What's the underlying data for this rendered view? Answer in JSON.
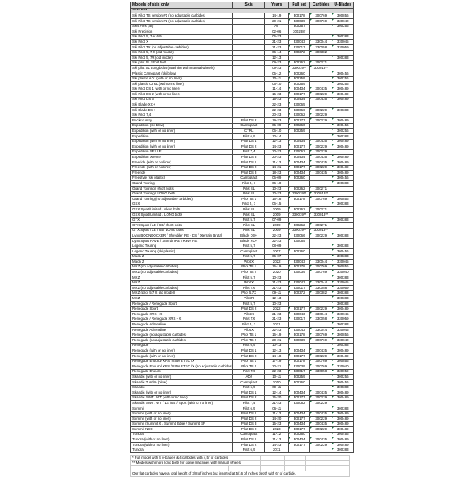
{
  "colors": {
    "header_bg": "#d9d9d9",
    "section_bg": "#d9d9d9",
    "grid_border": "#4a4a4a",
    "footnote_border": "#c9c9c9",
    "flag_green": "#1e7145"
  },
  "table": {
    "columns": [
      {
        "key": "model",
        "label": "Models of skis only"
      },
      {
        "key": "skis",
        "label": "Skis"
      },
      {
        "key": "years",
        "label": "Years"
      },
      {
        "key": "full-set",
        "label": "Full set"
      },
      {
        "key": "carbides",
        "label": "Carbides"
      },
      {
        "key": "u-blades",
        "label": "U-Blades"
      }
    ],
    "section_header": "Ski-Doo",
    "flag_columns": [
      3,
      4,
      5
    ],
    "flag_exceptions": [
      "300257",
      "300288*"
    ],
    "rows": [
      [
        "Ski Pilot TS version #1 (no adjustable carbides)",
        "",
        "14-19",
        "300178",
        "300769",
        "300856"
      ],
      [
        "Ski Pilot TS version #2 (no adjustable carbides)",
        "",
        "20-21",
        "330039",
        "300769",
        "330040"
      ],
      [
        "Skis Flex (all)",
        "",
        "All",
        "300257",
        "",
        "300256"
      ],
      [
        "Ski Precision",
        "",
        "02-06",
        "300288*",
        "",
        ""
      ],
      [
        "Ski Pilot 5, 7 et 6,9",
        "",
        "06-23",
        "",
        "",
        "300383"
      ],
      [
        "Ski Pilot X",
        "",
        "21-23",
        "330043",
        "330044",
        "330045"
      ],
      [
        "Ski Pilot TX (no adjustable carbides)",
        "",
        "21-23",
        "330017",
        "330058",
        "330059"
      ],
      [
        "Ski Pilot 5, 7 X (old model)",
        "",
        "06-14",
        "300372",
        "300382",
        ""
      ],
      [
        "Ski Pilot 5, 7R (old model)",
        "",
        "12-13",
        "",
        "",
        "300383"
      ],
      [
        "Ski pilot SL Short bolt",
        "",
        "09-23",
        "300262",
        "300271",
        ""
      ],
      [
        "Ski pilot SL Long bolts (machine with manual wheels)",
        "",
        "09-23",
        "330019**",
        "330018**",
        ""
      ],
      [
        "Plastic Camoplast (ski blow)",
        "",
        "05-12",
        "300260",
        "",
        "300456"
      ],
      [
        "Ski plastic ADJ (with or no liner)",
        "",
        "10-11",
        "300259",
        "",
        "300256"
      ],
      [
        "Ski plastic CTRL (with or no liner)",
        "",
        "06-10",
        "300259",
        "",
        "300256"
      ],
      [
        "Ski Pilot DS 1 (with or no liner)",
        "",
        "11-14",
        "300434",
        "300435",
        "300489"
      ],
      [
        "Ski Pilot DS 2 (with or no liner)",
        "",
        "15-23",
        "300177",
        "300229",
        "300489"
      ],
      [
        "Ski Pilot DS 3",
        "",
        "15-23",
        "300434",
        "300435",
        "300489"
      ],
      [
        "Ski Blade XC+",
        "",
        "22-23",
        "330065",
        "",
        ""
      ],
      [
        "Ski Blade DS+",
        "",
        "22-23",
        "330066",
        "300229",
        "300383"
      ],
      [
        "Ski Pilot 7,4",
        "",
        "20-23",
        "330062",
        "300229",
        ""
      ],
      [
        "Backcountry",
        "Pilot DS 2",
        "19-23",
        "300177",
        "300229",
        "300489"
      ],
      [
        "Expedition (ski blow)",
        "Camoplast",
        "05-09",
        "300260",
        "",
        "300456"
      ],
      [
        "Expedition (with or no liner)",
        "CTRL",
        "06-10",
        "300259",
        "",
        "300256"
      ],
      [
        "Expedition",
        "Pilot 6,9",
        "10-14",
        "",
        "",
        "300383"
      ],
      [
        "Expedition (with or no liner)",
        "Pilot DS 1",
        "12-13",
        "300434",
        "300435",
        "300489"
      ],
      [
        "Expedition (with or no liner)",
        "Pilot DS 2",
        "14-23",
        "300177",
        "300229",
        "300489"
      ],
      [
        "Expedition SE / LE",
        "Pilot 7,4",
        "20-23",
        "330062",
        "300229",
        ""
      ],
      [
        "Expedition Xtreme",
        "Pilot DS 3",
        "20-23",
        "300434",
        "300435",
        "300489"
      ],
      [
        "Freeride (with or no liner)",
        "Pilot DS 1",
        "11-13",
        "300434",
        "300435",
        "300489"
      ],
      [
        "Freeride (with or no liner)",
        "Pilot DS 2",
        "14-21",
        "300177",
        "300229",
        "300489"
      ],
      [
        "Freeride",
        "Pilot DS 3",
        "18-23",
        "300434",
        "300435",
        "300489"
      ],
      [
        "Freestyle (ski plastic)",
        "Camoplast",
        "06-09",
        "300260",
        "",
        "300456"
      ],
      [
        "Grand Touring",
        "Pilot 5, 7",
        "06-10",
        "",
        "",
        "300383"
      ],
      [
        "Grand Touring / short bolts",
        "Pilot SL",
        "10-23",
        "300262",
        "300271",
        ""
      ],
      [
        "Grand Touring / LONG bolts",
        "Pilot SL",
        "10-23",
        "330019**",
        "330018**",
        ""
      ],
      [
        "Grand Touring (no adjustable carbides)",
        "Pilot TS 1",
        "16-18",
        "300178",
        "300769",
        "300856"
      ],
      [
        "GSX",
        "Pilot 5, 7",
        "06-15",
        "",
        "",
        "300383"
      ],
      [
        "GSX Sport/Limited / short bolts",
        "Pilot SL",
        "2009",
        "300262",
        "300271",
        ""
      ],
      [
        "GSX Sport/Limited / LONG bolts",
        "Pilot SL",
        "2009",
        "330019**",
        "330018**",
        ""
      ],
      [
        "GTX",
        "Pilot 5,7",
        "07-09",
        "",
        "",
        "300383"
      ],
      [
        "GTX Sport / LE / SE/ short bolts",
        "Pilot SL",
        "2009",
        "300262",
        "300271",
        ""
      ],
      [
        "GTX Sport / LE / SE/ LONG bolts",
        "Pilot SL",
        "2009",
        "330019**",
        "330018**",
        ""
      ],
      [
        "Lynx BOONDOCKER / Shredder RE - DS / Xterrain Brutal",
        "Blade DS+",
        "22-23",
        "330066",
        "300229",
        "300383"
      ],
      [
        "Lynx Sport RAVE / Xterrain RE / Rave RE",
        "Blade XC+",
        "22-23",
        "330065",
        "",
        ""
      ],
      [
        "Legend Touring",
        "Pilot 5,7",
        "08-09",
        "",
        "",
        "300383"
      ],
      [
        "Legend Touring (ski plastic)",
        "Camoplast",
        "2007",
        "300260",
        "",
        "300456"
      ],
      [
        "Mach Z",
        "Pilot 5,7",
        "06-07",
        "",
        "",
        "300383"
      ],
      [
        "Mach Z",
        "Pilot X",
        "2022",
        "330043",
        "330044",
        "330045"
      ],
      [
        "MXZ (no adjustable carbides)",
        "Pilot TS 1",
        "16-19",
        "300178",
        "300769",
        "300856"
      ],
      [
        "MXZ (no adjustable carbides)",
        "Pilot TS 2",
        "2020",
        "330039",
        "300769",
        "330040"
      ],
      [
        "MXZ",
        "Pilot 5,7",
        "10-23",
        "",
        "",
        "300383"
      ],
      [
        "MXZ",
        "Pilot X",
        "21-23",
        "330043",
        "330044",
        "330045"
      ],
      [
        "MXZ (no adjustable carbides)",
        "Pilot TX",
        "21-23",
        "330017",
        "330058",
        "330059"
      ],
      [
        "MXZ (pilot 5,7 X old model)",
        "Pilot 5,7X",
        "09-11",
        "300372",
        "300382",
        "300383"
      ],
      [
        "MXZ",
        "Pilot R",
        "12-13",
        "",
        "",
        "300383"
      ],
      [
        "Renegade / Renegade Sport",
        "Pilot 5,7",
        "10-23",
        "",
        "",
        "300383"
      ],
      [
        "Renegade Sport",
        "Pilot DS 2",
        "2022",
        "300177",
        "300229",
        "300489"
      ],
      [
        "Renegade XRS - X",
        "Pilot X",
        "21-23",
        "330043",
        "330044",
        "330045"
      ],
      [
        "Renegade / Renegade XRS - X",
        "Pilot TX",
        "21-23",
        "330017",
        "330058",
        "330059"
      ],
      [
        "Renegade Adrenaline",
        "Pilot 5, 7",
        "2021",
        "",
        "",
        "300383"
      ],
      [
        "Renegade Adrenaline",
        "Pilot X",
        "22-23",
        "330043",
        "330044",
        "330045"
      ],
      [
        "Renegade (no adjustable carbides)",
        "Pilot TS 1",
        "16-19",
        "300178",
        "300769",
        "300856"
      ],
      [
        "Renegade (no adjustable carbides)",
        "Pilot TS 2",
        "20-21",
        "330039",
        "300769",
        "330040"
      ],
      [
        "Renegade",
        "Pilot 6,9",
        "10-13",
        "",
        "",
        "300383"
      ],
      [
        "Renegade (with or no liner)",
        "Pilot DS 1",
        "12-13",
        "300434",
        "300435",
        "300489"
      ],
      [
        "Renegade (with or no liner)",
        "Pilot DS 2",
        "14-18",
        "300177",
        "300229",
        "300489"
      ],
      [
        "Renegade Enduro/ XRS /X850 ETEC /X",
        "Pilot TS 1",
        "17-19",
        "300178",
        "300769",
        "300856"
      ],
      [
        "Renegade Enduro/ XRS /X850 ETEC /X (no adjustable carbides)",
        "Pilot TS 2",
        "20-21",
        "330039",
        "300769",
        "330040"
      ],
      [
        "Renegade Enduro",
        "Pilot TX",
        "22-23",
        "330017",
        "330058",
        "330059"
      ],
      [
        "Skandic (with or no liner)",
        "ADJ",
        "10-11",
        "300259",
        "",
        "300256"
      ],
      [
        "Skandic Tundra (blow)",
        "Camoplast",
        "2010",
        "300260",
        "",
        "300456"
      ],
      [
        "Skandic",
        "Pilot 6,9",
        "09-11",
        "",
        "",
        "300383"
      ],
      [
        "Skandic (with or no liner)",
        "Pilot DS 1",
        "12-14",
        "300434",
        "300435",
        "300489"
      ],
      [
        "Skandic SWT / WT (with or no liner)",
        "Pilot DS 2",
        "15-20",
        "300177",
        "300229",
        "300489"
      ],
      [
        "Skandic SWT / WT / LE /SE / Sport (with or no liner)",
        "Pilot 7,4",
        "21-23",
        "330062",
        "300229",
        ""
      ],
      [
        "Summit",
        "Pilot 6,9",
        "06-11",
        "",
        "",
        "300383"
      ],
      [
        "Summit (with or no liner)",
        "Pilot DS 1",
        "11-13",
        "300434",
        "300435",
        "300489"
      ],
      [
        "Summit (with or no liner)",
        "Pilot DS 2",
        "14-20",
        "300177",
        "300229",
        "300489"
      ],
      [
        "Summit /Summit X / Summit Edge / Summit SP",
        "Pilot DS 3",
        "15-23",
        "300434",
        "300435",
        "300489"
      ],
      [
        "Summit NEO",
        "Pilot DS 2",
        "2023",
        "300177",
        "300229",
        "300489"
      ],
      [
        "Tundra",
        "Camoplast",
        "11-12",
        "300260",
        "",
        "300456"
      ],
      [
        "Tundra (with or no liner)",
        "Pilot DS 1",
        "11-13",
        "300434",
        "300435",
        "300489"
      ],
      [
        "Tundra (with or no liner)",
        "Pilot DS 2",
        "14-23",
        "300177",
        "300229",
        "300489"
      ],
      [
        "Tundra",
        "Pilot 6,9",
        "2011",
        "",
        "",
        "300383"
      ]
    ]
  },
  "footnotes": {
    "line1": "* Full model with 4 u-blades & 4 carbides with 4,5\" of carbides",
    "line2": "** Models with more long bolts for some machines with manual wheels",
    "line3": "Our flat carbides have a total height of 3/8 of inches but inserted at 5/16 of inches depth with 6\" of carbide."
  }
}
